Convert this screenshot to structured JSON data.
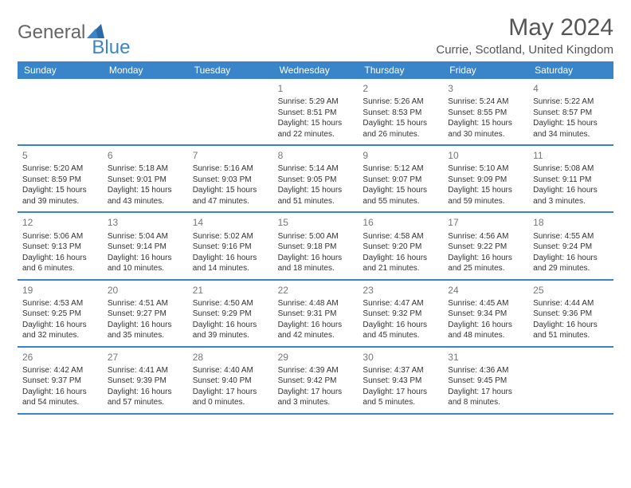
{
  "logo": {
    "general": "General",
    "blue": "Blue"
  },
  "title": "May 2024",
  "location": "Currie, Scotland, United Kingdom",
  "colors": {
    "header_bg": "#3a85c9",
    "header_text": "#ffffff",
    "rule": "#3a85c9",
    "text": "#333333",
    "daynum": "#777777",
    "background": "#ffffff"
  },
  "day_names": [
    "Sunday",
    "Monday",
    "Tuesday",
    "Wednesday",
    "Thursday",
    "Friday",
    "Saturday"
  ],
  "weeks": [
    [
      null,
      null,
      null,
      {
        "n": "1",
        "sr": "Sunrise: 5:29 AM",
        "ss": "Sunset: 8:51 PM",
        "d1": "Daylight: 15 hours",
        "d2": "and 22 minutes."
      },
      {
        "n": "2",
        "sr": "Sunrise: 5:26 AM",
        "ss": "Sunset: 8:53 PM",
        "d1": "Daylight: 15 hours",
        "d2": "and 26 minutes."
      },
      {
        "n": "3",
        "sr": "Sunrise: 5:24 AM",
        "ss": "Sunset: 8:55 PM",
        "d1": "Daylight: 15 hours",
        "d2": "and 30 minutes."
      },
      {
        "n": "4",
        "sr": "Sunrise: 5:22 AM",
        "ss": "Sunset: 8:57 PM",
        "d1": "Daylight: 15 hours",
        "d2": "and 34 minutes."
      }
    ],
    [
      {
        "n": "5",
        "sr": "Sunrise: 5:20 AM",
        "ss": "Sunset: 8:59 PM",
        "d1": "Daylight: 15 hours",
        "d2": "and 39 minutes."
      },
      {
        "n": "6",
        "sr": "Sunrise: 5:18 AM",
        "ss": "Sunset: 9:01 PM",
        "d1": "Daylight: 15 hours",
        "d2": "and 43 minutes."
      },
      {
        "n": "7",
        "sr": "Sunrise: 5:16 AM",
        "ss": "Sunset: 9:03 PM",
        "d1": "Daylight: 15 hours",
        "d2": "and 47 minutes."
      },
      {
        "n": "8",
        "sr": "Sunrise: 5:14 AM",
        "ss": "Sunset: 9:05 PM",
        "d1": "Daylight: 15 hours",
        "d2": "and 51 minutes."
      },
      {
        "n": "9",
        "sr": "Sunrise: 5:12 AM",
        "ss": "Sunset: 9:07 PM",
        "d1": "Daylight: 15 hours",
        "d2": "and 55 minutes."
      },
      {
        "n": "10",
        "sr": "Sunrise: 5:10 AM",
        "ss": "Sunset: 9:09 PM",
        "d1": "Daylight: 15 hours",
        "d2": "and 59 minutes."
      },
      {
        "n": "11",
        "sr": "Sunrise: 5:08 AM",
        "ss": "Sunset: 9:11 PM",
        "d1": "Daylight: 16 hours",
        "d2": "and 3 minutes."
      }
    ],
    [
      {
        "n": "12",
        "sr": "Sunrise: 5:06 AM",
        "ss": "Sunset: 9:13 PM",
        "d1": "Daylight: 16 hours",
        "d2": "and 6 minutes."
      },
      {
        "n": "13",
        "sr": "Sunrise: 5:04 AM",
        "ss": "Sunset: 9:14 PM",
        "d1": "Daylight: 16 hours",
        "d2": "and 10 minutes."
      },
      {
        "n": "14",
        "sr": "Sunrise: 5:02 AM",
        "ss": "Sunset: 9:16 PM",
        "d1": "Daylight: 16 hours",
        "d2": "and 14 minutes."
      },
      {
        "n": "15",
        "sr": "Sunrise: 5:00 AM",
        "ss": "Sunset: 9:18 PM",
        "d1": "Daylight: 16 hours",
        "d2": "and 18 minutes."
      },
      {
        "n": "16",
        "sr": "Sunrise: 4:58 AM",
        "ss": "Sunset: 9:20 PM",
        "d1": "Daylight: 16 hours",
        "d2": "and 21 minutes."
      },
      {
        "n": "17",
        "sr": "Sunrise: 4:56 AM",
        "ss": "Sunset: 9:22 PM",
        "d1": "Daylight: 16 hours",
        "d2": "and 25 minutes."
      },
      {
        "n": "18",
        "sr": "Sunrise: 4:55 AM",
        "ss": "Sunset: 9:24 PM",
        "d1": "Daylight: 16 hours",
        "d2": "and 29 minutes."
      }
    ],
    [
      {
        "n": "19",
        "sr": "Sunrise: 4:53 AM",
        "ss": "Sunset: 9:25 PM",
        "d1": "Daylight: 16 hours",
        "d2": "and 32 minutes."
      },
      {
        "n": "20",
        "sr": "Sunrise: 4:51 AM",
        "ss": "Sunset: 9:27 PM",
        "d1": "Daylight: 16 hours",
        "d2": "and 35 minutes."
      },
      {
        "n": "21",
        "sr": "Sunrise: 4:50 AM",
        "ss": "Sunset: 9:29 PM",
        "d1": "Daylight: 16 hours",
        "d2": "and 39 minutes."
      },
      {
        "n": "22",
        "sr": "Sunrise: 4:48 AM",
        "ss": "Sunset: 9:31 PM",
        "d1": "Daylight: 16 hours",
        "d2": "and 42 minutes."
      },
      {
        "n": "23",
        "sr": "Sunrise: 4:47 AM",
        "ss": "Sunset: 9:32 PM",
        "d1": "Daylight: 16 hours",
        "d2": "and 45 minutes."
      },
      {
        "n": "24",
        "sr": "Sunrise: 4:45 AM",
        "ss": "Sunset: 9:34 PM",
        "d1": "Daylight: 16 hours",
        "d2": "and 48 minutes."
      },
      {
        "n": "25",
        "sr": "Sunrise: 4:44 AM",
        "ss": "Sunset: 9:36 PM",
        "d1": "Daylight: 16 hours",
        "d2": "and 51 minutes."
      }
    ],
    [
      {
        "n": "26",
        "sr": "Sunrise: 4:42 AM",
        "ss": "Sunset: 9:37 PM",
        "d1": "Daylight: 16 hours",
        "d2": "and 54 minutes."
      },
      {
        "n": "27",
        "sr": "Sunrise: 4:41 AM",
        "ss": "Sunset: 9:39 PM",
        "d1": "Daylight: 16 hours",
        "d2": "and 57 minutes."
      },
      {
        "n": "28",
        "sr": "Sunrise: 4:40 AM",
        "ss": "Sunset: 9:40 PM",
        "d1": "Daylight: 17 hours",
        "d2": "and 0 minutes."
      },
      {
        "n": "29",
        "sr": "Sunrise: 4:39 AM",
        "ss": "Sunset: 9:42 PM",
        "d1": "Daylight: 17 hours",
        "d2": "and 3 minutes."
      },
      {
        "n": "30",
        "sr": "Sunrise: 4:37 AM",
        "ss": "Sunset: 9:43 PM",
        "d1": "Daylight: 17 hours",
        "d2": "and 5 minutes."
      },
      {
        "n": "31",
        "sr": "Sunrise: 4:36 AM",
        "ss": "Sunset: 9:45 PM",
        "d1": "Daylight: 17 hours",
        "d2": "and 8 minutes."
      },
      null
    ]
  ]
}
